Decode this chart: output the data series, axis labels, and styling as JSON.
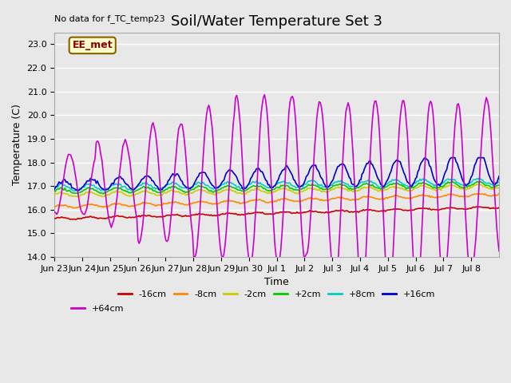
{
  "title": "Soil/Water Temperature Set 3",
  "xlabel": "Time",
  "ylabel": "Temperature (C)",
  "annotation_text": "No data for f_TC_temp23",
  "legend_box_text": "EE_met",
  "ylim": [
    14.0,
    23.5
  ],
  "yticks": [
    14.0,
    15.0,
    16.0,
    17.0,
    18.0,
    19.0,
    20.0,
    21.0,
    22.0,
    23.0
  ],
  "background_color": "#e8e8e8",
  "plot_bg_color": "#e8e8e8",
  "series": {
    "-16cm": {
      "color": "#cc0000",
      "linewidth": 1.2
    },
    "-8cm": {
      "color": "#ff8800",
      "linewidth": 1.2
    },
    "-2cm": {
      "color": "#cccc00",
      "linewidth": 1.2
    },
    "+2cm": {
      "color": "#00cc00",
      "linewidth": 1.2
    },
    "+8cm": {
      "color": "#00cccc",
      "linewidth": 1.2
    },
    "+16cm": {
      "color": "#0000cc",
      "linewidth": 1.2
    },
    "+64cm": {
      "color": "#cc00cc",
      "linewidth": 1.2
    }
  },
  "xtick_labels": [
    "Jun 23",
    "Jun 24",
    "Jun 25",
    "Jun 26",
    "Jun 27",
    "Jun 28",
    "Jun 29",
    "Jun 30",
    "Jul 1",
    "Jul 2",
    "Jul 3",
    "Jul 4",
    "Jul 5",
    "Jul 6",
    "Jul 7",
    "Jul 8"
  ],
  "xtick_positions": [
    0,
    1,
    2,
    3,
    4,
    5,
    6,
    7,
    8,
    9,
    10,
    11,
    12,
    13,
    14,
    15
  ],
  "grid_color": "#ffffff",
  "title_fontsize": 13,
  "label_fontsize": 9,
  "tick_fontsize": 8,
  "legend_fontsize": 8
}
